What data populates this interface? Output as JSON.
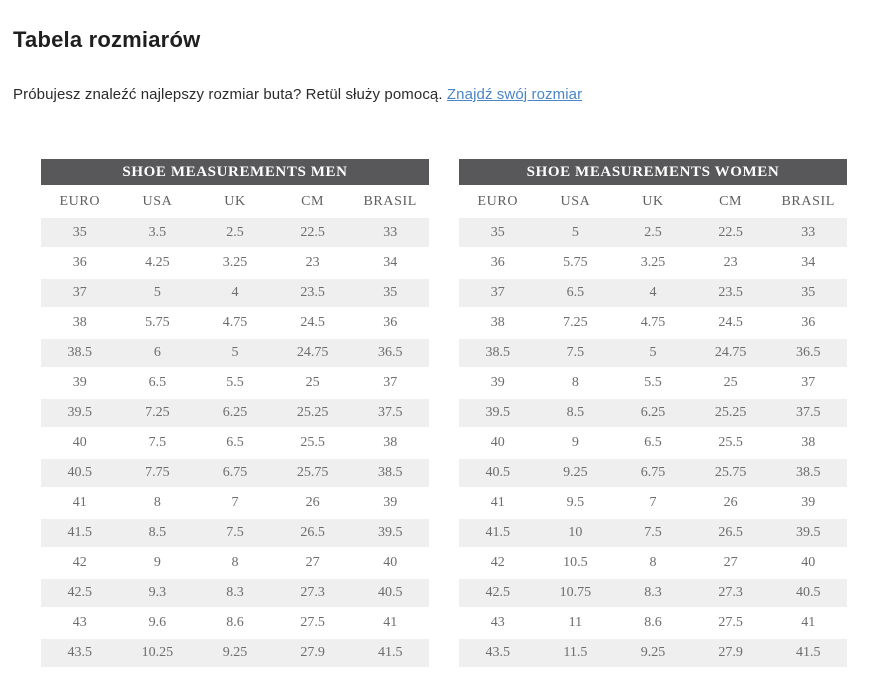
{
  "page": {
    "title": "Tabela rozmiarów",
    "intro_text": "Próbujesz znaleźć najlepszy rozmiar buta? Retül służy pomocą.",
    "intro_link": "Znajdź swój rozmiar"
  },
  "colors": {
    "table_title_bg": "#58585a",
    "table_title_text": "#ffffff",
    "row_stripe": "#efefef",
    "cell_text": "#6d6d6d",
    "link": "#4a86c8"
  },
  "tables": [
    {
      "title": "SHOE MEASUREMENTS MEN",
      "columns": [
        "EURO",
        "USA",
        "UK",
        "CM",
        "BRASIL"
      ],
      "rows": [
        [
          "35",
          "3.5",
          "2.5",
          "22.5",
          "33"
        ],
        [
          "36",
          "4.25",
          "3.25",
          "23",
          "34"
        ],
        [
          "37",
          "5",
          "4",
          "23.5",
          "35"
        ],
        [
          "38",
          "5.75",
          "4.75",
          "24.5",
          "36"
        ],
        [
          "38.5",
          "6",
          "5",
          "24.75",
          "36.5"
        ],
        [
          "39",
          "6.5",
          "5.5",
          "25",
          "37"
        ],
        [
          "39.5",
          "7.25",
          "6.25",
          "25.25",
          "37.5"
        ],
        [
          "40",
          "7.5",
          "6.5",
          "25.5",
          "38"
        ],
        [
          "40.5",
          "7.75",
          "6.75",
          "25.75",
          "38.5"
        ],
        [
          "41",
          "8",
          "7",
          "26",
          "39"
        ],
        [
          "41.5",
          "8.5",
          "7.5",
          "26.5",
          "39.5"
        ],
        [
          "42",
          "9",
          "8",
          "27",
          "40"
        ],
        [
          "42.5",
          "9.3",
          "8.3",
          "27.3",
          "40.5"
        ],
        [
          "43",
          "9.6",
          "8.6",
          "27.5",
          "41"
        ],
        [
          "43.5",
          "10.25",
          "9.25",
          "27.9",
          "41.5"
        ]
      ]
    },
    {
      "title": "SHOE MEASUREMENTS WOMEN",
      "columns": [
        "EURO",
        "USA",
        "UK",
        "CM",
        "BRASIL"
      ],
      "rows": [
        [
          "35",
          "5",
          "2.5",
          "22.5",
          "33"
        ],
        [
          "36",
          "5.75",
          "3.25",
          "23",
          "34"
        ],
        [
          "37",
          "6.5",
          "4",
          "23.5",
          "35"
        ],
        [
          "38",
          "7.25",
          "4.75",
          "24.5",
          "36"
        ],
        [
          "38.5",
          "7.5",
          "5",
          "24.75",
          "36.5"
        ],
        [
          "39",
          "8",
          "5.5",
          "25",
          "37"
        ],
        [
          "39.5",
          "8.5",
          "6.25",
          "25.25",
          "37.5"
        ],
        [
          "40",
          "9",
          "6.5",
          "25.5",
          "38"
        ],
        [
          "40.5",
          "9.25",
          "6.75",
          "25.75",
          "38.5"
        ],
        [
          "41",
          "9.5",
          "7",
          "26",
          "39"
        ],
        [
          "41.5",
          "10",
          "7.5",
          "26.5",
          "39.5"
        ],
        [
          "42",
          "10.5",
          "8",
          "27",
          "40"
        ],
        [
          "42.5",
          "10.75",
          "8.3",
          "27.3",
          "40.5"
        ],
        [
          "43",
          "11",
          "8.6",
          "27.5",
          "41"
        ],
        [
          "43.5",
          "11.5",
          "9.25",
          "27.9",
          "41.5"
        ]
      ]
    }
  ]
}
